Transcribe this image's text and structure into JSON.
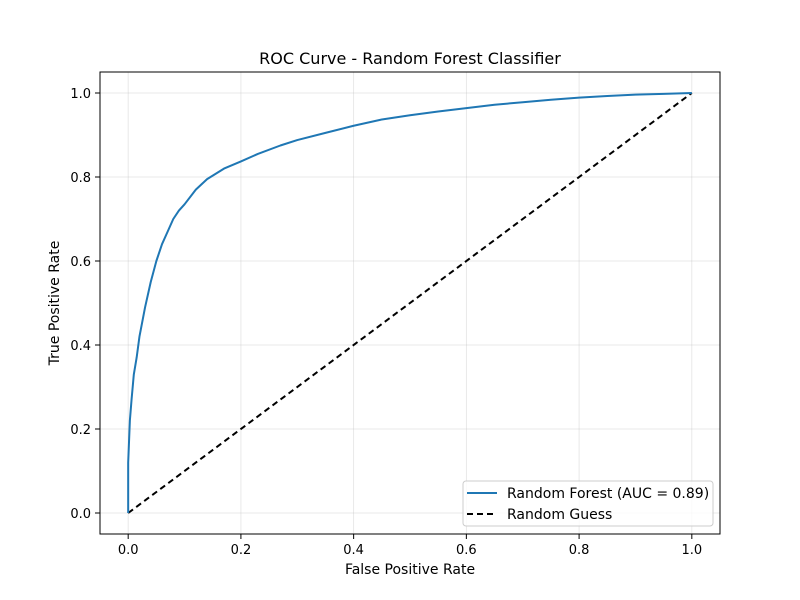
{
  "chart_data": {
    "type": "line",
    "title": "ROC Curve - Random Forest Classifier",
    "xlabel": "False Positive Rate",
    "ylabel": "True Positive Rate",
    "xlim": [
      -0.05,
      1.05
    ],
    "ylim": [
      -0.05,
      1.05
    ],
    "x_ticks": [
      0.0,
      0.2,
      0.4,
      0.6,
      0.8,
      1.0
    ],
    "y_ticks": [
      0.0,
      0.2,
      0.4,
      0.6,
      0.8,
      1.0
    ],
    "x_tick_labels": [
      "0.0",
      "0.2",
      "0.4",
      "0.6",
      "0.8",
      "1.0"
    ],
    "y_tick_labels": [
      "0.0",
      "0.2",
      "0.4",
      "0.6",
      "0.8",
      "1.0"
    ],
    "grid": true,
    "legend_position": "lower-right",
    "series": [
      {
        "name": "Random Forest (AUC = 0.89)",
        "color": "#1f77b4",
        "style": "solid",
        "x": [
          0.0,
          0.0,
          0.003,
          0.006,
          0.01,
          0.015,
          0.02,
          0.03,
          0.04,
          0.05,
          0.06,
          0.07,
          0.08,
          0.09,
          0.1,
          0.12,
          0.14,
          0.17,
          0.2,
          0.23,
          0.27,
          0.3,
          0.35,
          0.4,
          0.45,
          0.5,
          0.55,
          0.6,
          0.65,
          0.7,
          0.75,
          0.8,
          0.85,
          0.9,
          0.95,
          1.0
        ],
        "y": [
          0.0,
          0.12,
          0.22,
          0.27,
          0.33,
          0.37,
          0.42,
          0.49,
          0.55,
          0.6,
          0.64,
          0.67,
          0.7,
          0.72,
          0.735,
          0.77,
          0.795,
          0.82,
          0.837,
          0.855,
          0.875,
          0.888,
          0.905,
          0.922,
          0.937,
          0.947,
          0.956,
          0.964,
          0.972,
          0.978,
          0.984,
          0.989,
          0.993,
          0.996,
          0.998,
          1.0
        ]
      },
      {
        "name": "Random Guess",
        "color": "#000000",
        "style": "dashed",
        "x": [
          0.0,
          1.0
        ],
        "y": [
          0.0,
          1.0
        ]
      }
    ]
  }
}
